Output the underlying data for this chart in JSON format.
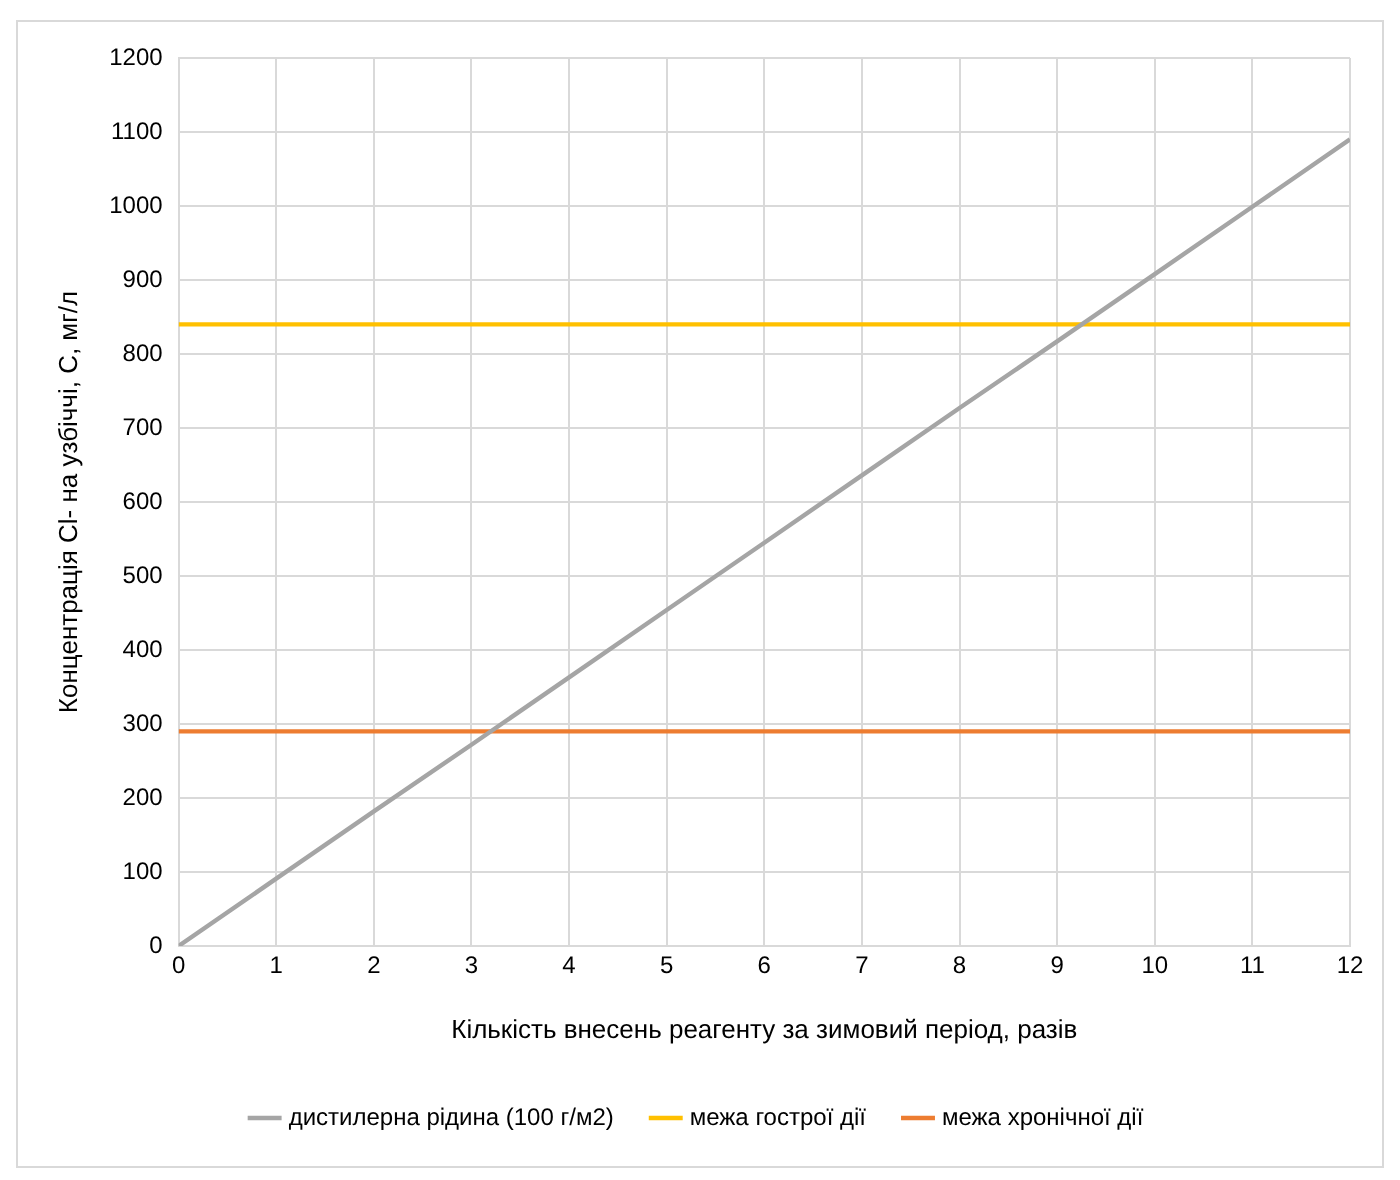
{
  "chart_data": {
    "type": "line",
    "xlabel": "Кількість внесень реагенту за зимовий період, разів",
    "ylabel": "Концентрація Cl- на узбіччі, С, мг/л",
    "series": [
      {
        "name": "дистилерна рідина (100 г/м2)",
        "color": "#a5a5a5",
        "x": [
          0,
          1,
          2,
          3,
          4,
          5,
          6,
          7,
          8,
          9,
          10,
          11,
          12
        ],
        "values": [
          0,
          91,
          182,
          272,
          363,
          454,
          545,
          636,
          727,
          817,
          908,
          999,
          1090
        ]
      },
      {
        "name": "межа гострої дії",
        "color": "#ffc000",
        "x": [
          0,
          12
        ],
        "values": [
          840,
          840
        ]
      },
      {
        "name": "межа хронічної дії",
        "color": "#ed7d31",
        "x": [
          0,
          12
        ],
        "values": [
          290,
          290
        ]
      }
    ],
    "xlim": [
      0,
      12
    ],
    "xticks": [
      0,
      1,
      2,
      3,
      4,
      5,
      6,
      7,
      8,
      9,
      10,
      11,
      12
    ],
    "ylim": [
      0,
      1200
    ],
    "yticks": [
      0,
      100,
      200,
      300,
      400,
      500,
      600,
      700,
      800,
      900,
      1000,
      1100,
      1200
    ],
    "grid": true,
    "legend": "bottom",
    "marker": "none",
    "line_style": "solid"
  }
}
